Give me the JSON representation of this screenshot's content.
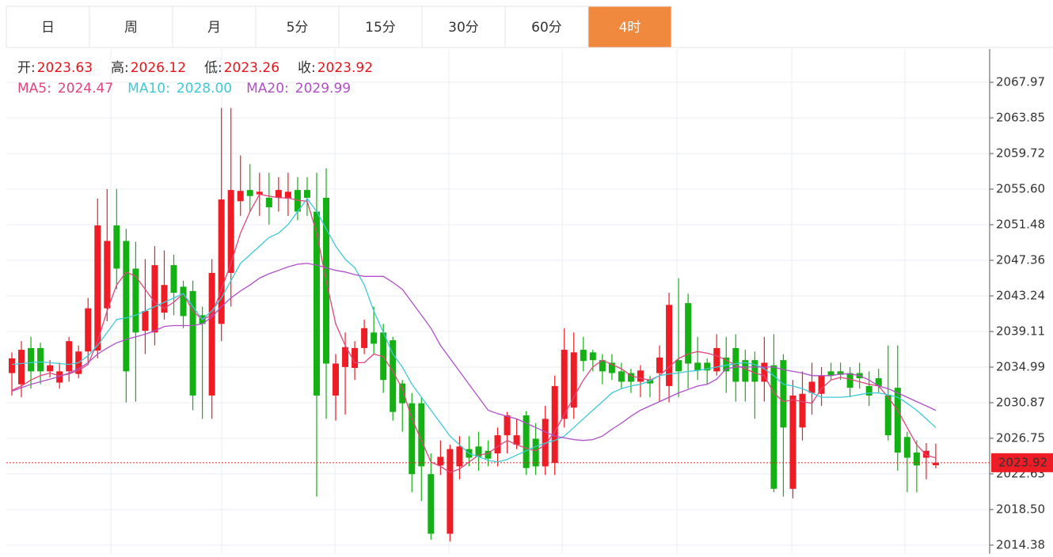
{
  "tabs": [
    "日",
    "周",
    "月",
    "5分",
    "15分",
    "30分",
    "60分",
    "4时"
  ],
  "active_tab": 7,
  "labels": {
    "open": "开:",
    "high": "高:",
    "low": "低:",
    "close": "收:"
  },
  "chart_data": {
    "type": "candlestick",
    "up_color": "#ee1c25",
    "down_color": "#14b014",
    "open": [
      2034.3,
      2033.0,
      2037.2,
      2037.2,
      2034.5,
      2033.2,
      2034.5,
      2034.2,
      2036.8,
      2036.9,
      2041.8,
      2051.4,
      2049.6,
      2046.4,
      2039.2,
      2039.0,
      2041.3,
      2046.8,
      2044.3,
      2043.8,
      2041.0,
      2031.7,
      2040.0,
      2045.9,
      2054.2,
      2055.5,
      2055.0,
      2054.6,
      2054.6,
      2054.5,
      2055.5,
      2055.5,
      2053.0,
      2054.6,
      2031.7,
      2035.0,
      2034.9,
      2037.2,
      2039.0,
      2039.0,
      2038.1,
      2033.1,
      2030.8,
      2030.8,
      2022.6,
      2023.6,
      2015.7,
      2023.5,
      2025.5,
      2025.8,
      2025.3,
      2025.0,
      2027.1,
      2026.0,
      2029.4,
      2026.7,
      2023.5,
      2023.9,
      2029.0,
      2030.3,
      2037.0,
      2036.7,
      2035.8,
      2035.5,
      2034.5,
      2034.3,
      2033.3,
      2033.5,
      2034.3,
      2032.8,
      2035.8,
      2042.4,
      2035.5,
      2035.5,
      2034.5,
      2036.1,
      2037.2,
      2035.8,
      2035.8,
      2033.3,
      2035.2,
      2035.8,
      2020.9,
      2028.0,
      2032.0,
      2031.9,
      2034.5,
      2034.5,
      2034.3,
      2034.3,
      2032.8,
      2033.7,
      2031.7,
      2032.6,
      2026.9,
      2025.1,
      2024.5,
      2023.63
    ],
    "high": [
      2036.7,
      2038.0,
      2038.5,
      2037.8,
      2035.8,
      2035.5,
      2038.5,
      2037.5,
      2043.0,
      2054.5,
      2055.6,
      2055.6,
      2051.0,
      2049.5,
      2047.5,
      2049.0,
      2048.5,
      2048.0,
      2045.0,
      2045.0,
      2042.0,
      2047.5,
      2065.0,
      2065.0,
      2059.5,
      2058.5,
      2057.5,
      2057.5,
      2057.0,
      2057.5,
      2057.0,
      2057.0,
      2057.5,
      2058.0,
      2036.5,
      2039.0,
      2038.0,
      2040.5,
      2042.0,
      2040.0,
      2038.5,
      2033.5,
      2032.0,
      2031.5,
      2025.0,
      2026.5,
      2026.0,
      2027.0,
      2027.0,
      2027.5,
      2026.5,
      2028.0,
      2029.8,
      2029.0,
      2029.9,
      2028.5,
      2030.5,
      2034.0,
      2039.5,
      2039.0,
      2038.5,
      2037.0,
      2036.5,
      2036.5,
      2035.5,
      2034.8,
      2035.2,
      2034.0,
      2037.5,
      2043.6,
      2045.3,
      2043.5,
      2038.5,
      2036.0,
      2038.8,
      2038.5,
      2038.8,
      2037.0,
      2036.8,
      2038.5,
      2038.8,
      2036.5,
      2033.5,
      2034.5,
      2035.5,
      2035.0,
      2035.5,
      2035.5,
      2035.0,
      2035.5,
      2034.5,
      2034.8,
      2037.5,
      2037.5,
      2027.5,
      2026.5,
      2026.2,
      2026.12
    ],
    "low": [
      2031.7,
      2031.5,
      2032.5,
      2033.0,
      2033.8,
      2032.5,
      2033.3,
      2033.7,
      2035.5,
      2036.0,
      2040.3,
      2044.0,
      2030.9,
      2031.0,
      2036.5,
      2037.5,
      2040.5,
      2041.0,
      2039.5,
      2030.0,
      2029.0,
      2029.0,
      2038.0,
      2042.0,
      2052.5,
      2053.0,
      2052.5,
      2051.5,
      2053.0,
      2052.5,
      2052.0,
      2052.5,
      2020.0,
      2029.0,
      2028.8,
      2029.5,
      2033.5,
      2036.5,
      2036.5,
      2032.0,
      2028.8,
      2027.5,
      2020.5,
      2019.5,
      2015.0,
      2022.5,
      2014.8,
      2022.0,
      2023.5,
      2023.0,
      2023.5,
      2023.5,
      2025.0,
      2025.5,
      2022.5,
      2022.5,
      2022.5,
      2022.5,
      2028.0,
      2029.0,
      2034.5,
      2034.5,
      2033.0,
      2033.5,
      2032.5,
      2032.0,
      2031.5,
      2031.5,
      2031.0,
      2030.9,
      2031.5,
      2032.5,
      2033.5,
      2033.0,
      2034.0,
      2032.0,
      2031.0,
      2031.0,
      2029.0,
      2031.0,
      2020.5,
      2020.0,
      2019.8,
      2026.5,
      2029.5,
      2030.5,
      2033.5,
      2033.5,
      2031.5,
      2032.5,
      2030.5,
      2032.0,
      2026.5,
      2023.0,
      2020.5,
      2020.5,
      2022.0,
      2023.26
    ],
    "close": [
      2036.0,
      2037.0,
      2034.5,
      2034.5,
      2035.2,
      2034.5,
      2038.0,
      2036.8,
      2041.8,
      2051.4,
      2049.6,
      2046.4,
      2034.5,
      2039.0,
      2041.5,
      2046.8,
      2044.5,
      2043.6,
      2040.9,
      2031.7,
      2040.0,
      2045.9,
      2054.4,
      2055.5,
      2055.4,
      2054.8,
      2055.3,
      2053.5,
      2055.5,
      2055.3,
      2053.0,
      2054.6,
      2031.7,
      2035.4,
      2035.4,
      2037.3,
      2037.2,
      2039.5,
      2037.7,
      2033.5,
      2029.8,
      2030.8,
      2022.6,
      2023.5,
      2015.7,
      2024.6,
      2025.5,
      2025.8,
      2024.5,
      2024.6,
      2024.4,
      2027.1,
      2029.4,
      2027.1,
      2023.3,
      2023.5,
      2029.0,
      2032.8,
      2037.0,
      2036.7,
      2035.7,
      2035.8,
      2034.5,
      2034.3,
      2033.3,
      2033.3,
      2034.6,
      2033.1,
      2036.1,
      2042.2,
      2034.5,
      2035.4,
      2034.6,
      2034.6,
      2037.2,
      2034.5,
      2033.3,
      2033.3,
      2033.3,
      2035.5,
      2020.9,
      2028.0,
      2031.7,
      2031.9,
      2033.3,
      2034.0,
      2034.0,
      2034.1,
      2032.6,
      2033.7,
      2031.7,
      2032.8,
      2027.1,
      2025.1,
      2024.5,
      2023.6,
      2025.3,
      2023.92
    ],
    "series": [
      {
        "name": "MA5:",
        "color": "#e0457b",
        "legend_value": "2024.47",
        "values": [
          2032.3,
          2032.8,
          2033.5,
          2034.0,
          2034.3,
          2034.0,
          2034.2,
          2034.6,
          2035.3,
          2038.0,
          2041.5,
          2044.5,
          2046.0,
          2045.5,
          2044.0,
          2042.5,
          2041.8,
          2042.5,
          2043.5,
          2041.5,
          2040.5,
          2041.0,
          2044.0,
          2047.0,
          2050.5,
          2053.0,
          2055.0,
          2054.8,
          2054.6,
          2054.6,
          2054.3,
          2054.2,
          2050.5,
          2045.0,
          2040.0,
          2037.5,
          2035.5,
          2035.5,
          2036.5,
          2036.2,
          2034.5,
          2032.5,
          2029.0,
          2026.5,
          2024.0,
          2023.5,
          2022.8,
          2023.2,
          2024.0,
          2024.8,
          2025.0,
          2025.8,
          2026.5,
          2026.0,
          2025.6,
          2025.3,
          2026.0,
          2027.5,
          2029.5,
          2031.5,
          2033.5,
          2035.0,
          2035.8,
          2035.3,
          2034.8,
          2034.0,
          2033.7,
          2033.5,
          2034.0,
          2035.0,
          2036.0,
          2036.5,
          2036.8,
          2036.6,
          2036.3,
          2035.8,
          2035.2,
          2034.8,
          2034.3,
          2034.0,
          2032.0,
          2031.0,
          2031.2,
          2031.0,
          2030.8,
          2032.5,
          2033.5,
          2033.8,
          2033.6,
          2033.3,
          2033.0,
          2032.8,
          2031.5,
          2030.0,
          2028.0,
          2026.0,
          2024.8,
          2024.47
        ]
      },
      {
        "name": "MA10:",
        "color": "#3ec9d6",
        "legend_value": "2028.00",
        "values": [
          2035.3,
          2035.4,
          2035.5,
          2035.6,
          2035.5,
          2035.4,
          2035.3,
          2035.5,
          2036.3,
          2037.5,
          2039.0,
          2040.5,
          2040.7,
          2041.0,
          2041.5,
          2042.0,
          2042.5,
          2043.0,
          2043.5,
          2042.0,
          2040.5,
          2041.5,
          2043.0,
          2045.0,
          2047.0,
          2048.0,
          2049.0,
          2050.0,
          2050.5,
          2051.5,
          2053.0,
          2054.5,
          2053.0,
          2051.0,
          2049.0,
          2047.5,
          2046.5,
          2044.5,
          2041.5,
          2039.0,
          2036.5,
          2035.0,
          2033.0,
          2031.5,
          2030.0,
          2028.5,
          2027.0,
          2026.0,
          2025.0,
          2024.6,
          2024.2,
          2024.0,
          2024.3,
          2024.8,
          2025.3,
          2025.8,
          2026.2,
          2026.5,
          2027.0,
          2028.0,
          2029.0,
          2030.0,
          2031.0,
          2032.0,
          2032.5,
          2032.8,
          2033.0,
          2033.4,
          2034.0,
          2034.2,
          2034.3,
          2034.5,
          2034.6,
          2034.8,
          2035.0,
          2035.2,
          2035.4,
          2035.5,
          2035.3,
          2034.8,
          2034.0,
          2033.0,
          2032.8,
          2032.5,
          2032.0,
          2031.5,
          2031.5,
          2031.5,
          2031.6,
          2031.8,
          2032.0,
          2032.0,
          2031.8,
          2031.5,
          2030.8,
          2030.0,
          2029.0,
          2028
        ]
      },
      {
        "name": "MA20:",
        "color": "#b04fc8",
        "legend_value": "2029.99",
        "values": [
          2032.2,
          2032.6,
          2033.0,
          2033.3,
          2033.6,
          2033.9,
          2034.3,
          2034.8,
          2035.5,
          2036.5,
          2037.2,
          2037.8,
          2038.2,
          2038.5,
          2038.8,
          2039.2,
          2039.7,
          2039.8,
          2039.8,
          2039.8,
          2040.0,
          2040.8,
          2042.0,
          2043.0,
          2043.8,
          2044.5,
          2045.3,
          2045.8,
          2046.2,
          2046.6,
          2046.9,
          2047.0,
          2046.8,
          2046.5,
          2046.2,
          2046.0,
          2045.7,
          2045.5,
          2045.5,
          2045.5,
          2044.8,
          2044.0,
          2042.5,
          2041.0,
          2039.5,
          2037.5,
          2036.0,
          2034.5,
          2033.0,
          2031.5,
          2030.0,
          2029.6,
          2029.3,
          2029.0,
          2028.5,
          2028.0,
          2027.5,
          2027.0,
          2026.8,
          2026.6,
          2026.5,
          2026.6,
          2027.0,
          2027.8,
          2028.5,
          2029.3,
          2030.0,
          2030.5,
          2031.0,
          2031.5,
          2032.0,
          2032.4,
          2032.8,
          2033.0,
          2033.6,
          2034.8,
          2035.0,
          2035.0,
          2035.0,
          2035.0,
          2035.0,
          2034.7,
          2034.5,
          2034.3,
          2034.0,
          2034.0,
          2034.0,
          2034.2,
          2034.2,
          2034.0,
          2033.5,
          2032.8,
          2032.5,
          2032.0,
          2031.5,
          2031.0,
          2030.5,
          2029.99
        ]
      }
    ],
    "ylim": [
      2013.37,
      2071.82
    ],
    "yticks": [
      2067.97,
      2063.85,
      2059.72,
      {
        "value": 2055.6,
        "label": "2055.60"
      },
      2051.48,
      2047.36,
      2043.24,
      2039.11,
      2034.99,
      2030.87,
      2026.75,
      2022.63,
      {
        "value": 2018.5,
        "label": "2018.50"
      },
      2014.38
    ],
    "grid": true
  }
}
